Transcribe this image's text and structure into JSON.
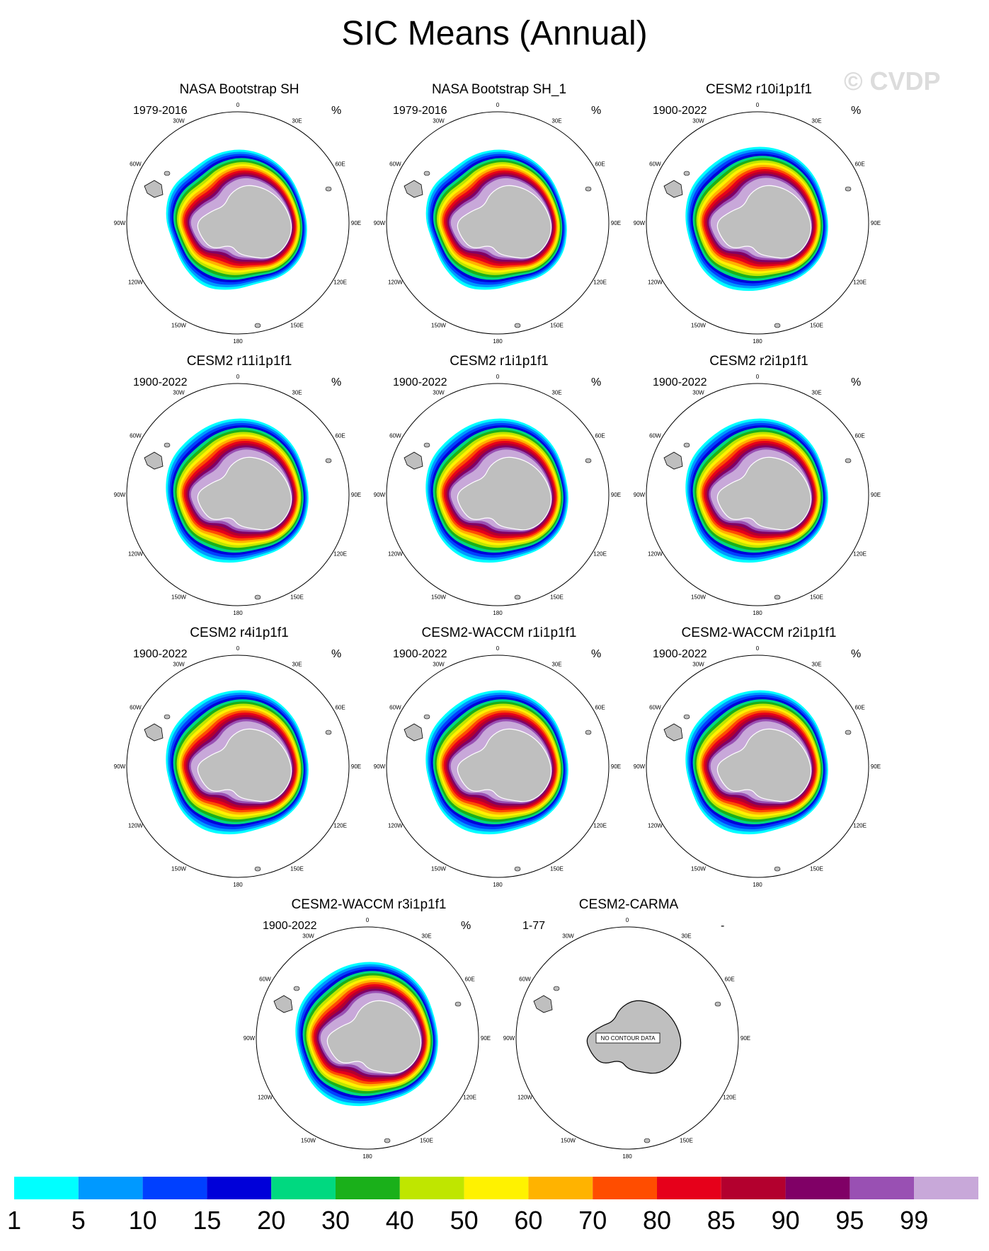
{
  "title": "SIC Means (Annual)",
  "watermark": "© CVDP",
  "map_labels": {
    "lon_0": "0",
    "lon_30e": "30E",
    "lon_60e": "60E",
    "lon_90e": "90E",
    "lon_120e": "120E",
    "lon_150e": "150E",
    "lon_180": "180",
    "lon_150w": "150W",
    "lon_120w": "120W",
    "lon_90w": "90W",
    "lon_60w": "60W",
    "lon_30w": "30W"
  },
  "no_data_label": "NO CONTOUR DATA",
  "panels": [
    {
      "title": "NASA Bootstrap SH",
      "period": "1979-2016",
      "units": "%",
      "has_data": true,
      "style": "obs"
    },
    {
      "title": "NASA Bootstrap SH_1",
      "period": "1979-2016",
      "units": "%",
      "has_data": true,
      "style": "obs"
    },
    {
      "title": "CESM2 r10i1p1f1",
      "period": "1900-2022",
      "units": "%",
      "has_data": true,
      "style": "model"
    },
    {
      "title": "CESM2 r11i1p1f1",
      "period": "1900-2022",
      "units": "%",
      "has_data": true,
      "style": "model"
    },
    {
      "title": "CESM2 r1i1p1f1",
      "period": "1900-2022",
      "units": "%",
      "has_data": true,
      "style": "model"
    },
    {
      "title": "CESM2 r2i1p1f1",
      "period": "1900-2022",
      "units": "%",
      "has_data": true,
      "style": "model"
    },
    {
      "title": "CESM2 r4i1p1f1",
      "period": "1900-2022",
      "units": "%",
      "has_data": true,
      "style": "model"
    },
    {
      "title": "CESM2-WACCM r1i1p1f1",
      "period": "1900-2022",
      "units": "%",
      "has_data": true,
      "style": "model"
    },
    {
      "title": "CESM2-WACCM r2i1p1f1",
      "period": "1900-2022",
      "units": "%",
      "has_data": true,
      "style": "model"
    },
    {
      "title": "CESM2-WACCM r3i1p1f1",
      "period": "1900-2022",
      "units": "%",
      "has_data": true,
      "style": "model"
    },
    {
      "title": "CESM2-CARMA",
      "period": "1-77",
      "units": "-",
      "has_data": false,
      "style": "none"
    }
  ],
  "colorbar": {
    "labels": [
      "1",
      "5",
      "10",
      "15",
      "20",
      "30",
      "40",
      "50",
      "60",
      "70",
      "80",
      "85",
      "90",
      "95",
      "99"
    ],
    "colors": [
      "#00ffff",
      "#0099ff",
      "#0040ff",
      "#0000d9",
      "#00d980",
      "#1ab01a",
      "#bfe600",
      "#fff200",
      "#ffb300",
      "#ff4d00",
      "#e6001a",
      "#b3002e",
      "#800066",
      "#9950b3",
      "#c8a8d9"
    ]
  }
}
